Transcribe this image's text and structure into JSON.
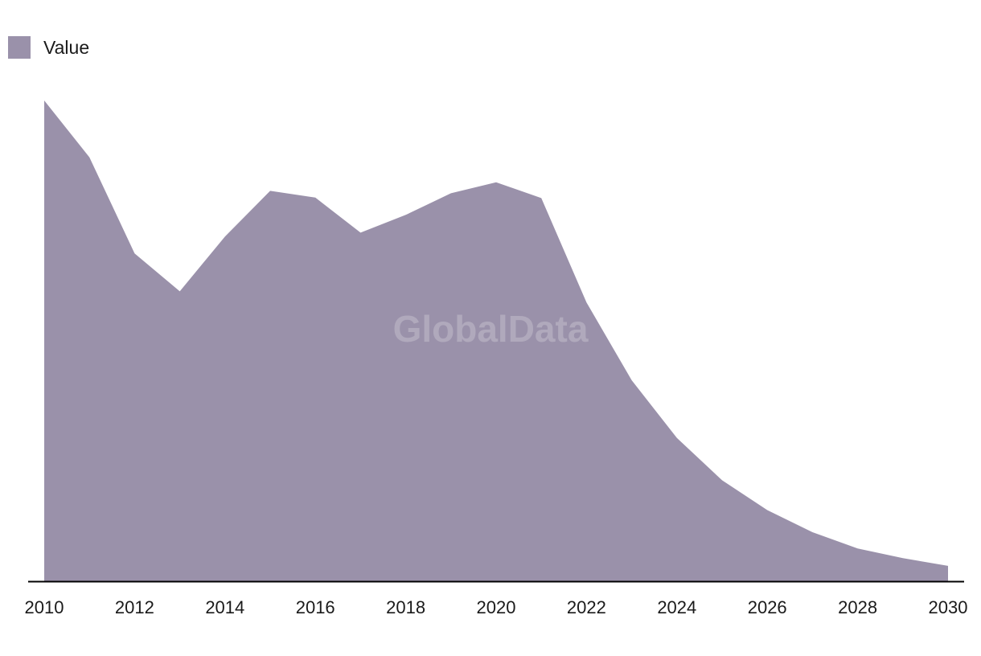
{
  "legend": {
    "label": "Value"
  },
  "watermark": "GlobalData",
  "colors": {
    "area": "#9a91aa",
    "axis": "#000000"
  },
  "chart_data": {
    "type": "area",
    "x": [
      2010,
      2011,
      2012,
      2013,
      2014,
      2015,
      2016,
      2017,
      2018,
      2019,
      2020,
      2021,
      2022,
      2023,
      2024,
      2025,
      2026,
      2027,
      2028,
      2029,
      2030
    ],
    "series": [
      {
        "name": "Value",
        "values": [
          100,
          88.2,
          68.2,
          60.3,
          71.7,
          81.2,
          79.8,
          72.5,
          76.2,
          80.7,
          83,
          79.7,
          58,
          41.8,
          29.8,
          21,
          14.8,
          10.2,
          6.8,
          4.8,
          3.2
        ]
      }
    ],
    "xticks": [
      "2010",
      "2012",
      "2014",
      "2016",
      "2018",
      "2020",
      "2022",
      "2024",
      "2026",
      "2028",
      "2030"
    ],
    "xlim": [
      2010,
      2030
    ],
    "ylim": [
      0,
      100
    ],
    "yaxis_visible": false,
    "grid": false,
    "legend_position": "top-left",
    "title": "",
    "xlabel": "",
    "ylabel": ""
  }
}
